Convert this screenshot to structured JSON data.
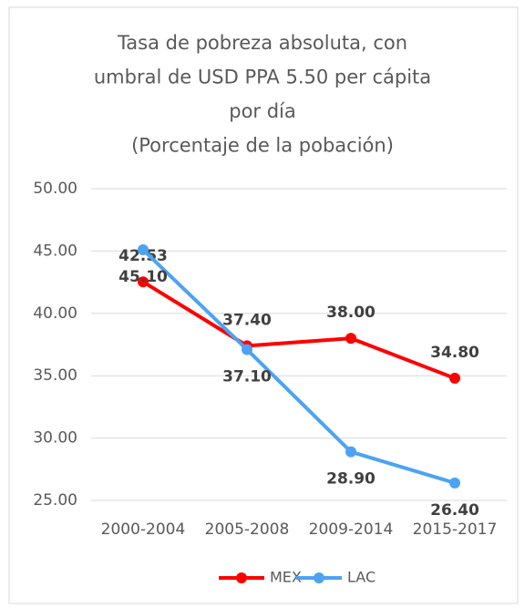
{
  "chart_data": {
    "type": "line",
    "title": [
      "Tasa de pobreza absoluta, con",
      "umbral de USD PPA 5.50 per cápita",
      "por día",
      "(Porcentaje de la pobación)"
    ],
    "categories": [
      "2000-2004",
      "2005-2008",
      "2009-2014",
      "2015-2017"
    ],
    "series": [
      {
        "name": "MEX",
        "color": "#ff0000",
        "values": [
          42.53,
          37.4,
          38.0,
          34.8
        ],
        "value_labels": [
          "42.53",
          "37.40",
          "38.00",
          "34.80"
        ]
      },
      {
        "name": "LAC",
        "color": "#4da3f2",
        "values": [
          45.1,
          37.1,
          28.9,
          26.4
        ],
        "value_labels": [
          "45.10",
          "37.10",
          "28.90",
          "26.40"
        ]
      }
    ],
    "ylim": [
      25,
      50
    ],
    "yticks": [
      {
        "value": 25,
        "label": "25.00"
      },
      {
        "value": 30,
        "label": "30.00"
      },
      {
        "value": 35,
        "label": "35.00"
      },
      {
        "value": 40,
        "label": "40.00"
      },
      {
        "value": 45,
        "label": "45.00"
      },
      {
        "value": 50,
        "label": "50.00"
      }
    ],
    "grid": true
  }
}
